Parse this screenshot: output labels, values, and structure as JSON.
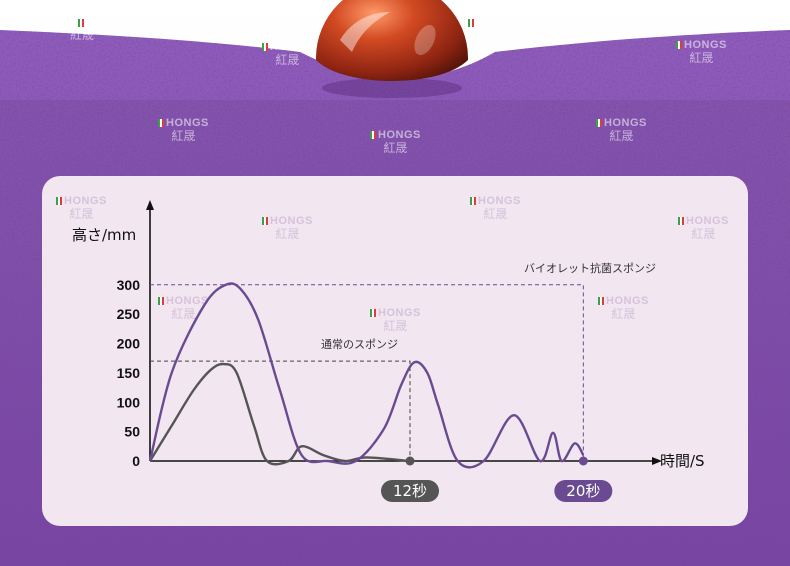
{
  "watermark": {
    "brand_en": "HONGS",
    "brand_cn": "紅晟"
  },
  "colors": {
    "purple_line": "#6a4b92",
    "gray_line": "#555555",
    "panel": "#f2e6f0",
    "sponge": "#8b56b7",
    "pill_gray": "#555555",
    "pill_purple": "#6a4b92"
  },
  "chart_data": {
    "type": "line",
    "title": "",
    "ylabel": "高さ/mm",
    "xlabel": "時間/S",
    "y_ticks": [
      "0",
      "50",
      "100",
      "150",
      "200",
      "250",
      "300"
    ],
    "ylim": [
      0,
      320
    ],
    "xlim": [
      0,
      21
    ],
    "grid": false,
    "series": [
      {
        "name": "バイオレット抗菌スポンジ",
        "color": "#6a4b92",
        "x": [
          0,
          1.0,
          2.5,
          3.5,
          4.2,
          5.0,
          6.0,
          7.0,
          8.2,
          9.5,
          10.8,
          11.6,
          12.2,
          12.8,
          13.3,
          14.2,
          15.4,
          16.8,
          18.0,
          18.6,
          19.0,
          19.6,
          20.0
        ],
        "y": [
          0,
          150,
          265,
          300,
          292,
          240,
          120,
          10,
          0,
          0,
          55,
          130,
          168,
          150,
          95,
          0,
          0,
          78,
          0,
          48,
          0,
          30,
          10
        ]
      },
      {
        "name": "通常のスポンジ",
        "color": "#555555",
        "x": [
          0,
          1.0,
          2.0,
          2.8,
          3.4,
          4.0,
          4.8,
          5.4,
          6.4,
          7.0,
          8.0,
          9.0,
          10.0,
          12.0
        ],
        "y": [
          0,
          60,
          120,
          155,
          165,
          150,
          60,
          0,
          0,
          25,
          10,
          0,
          6,
          0
        ]
      }
    ],
    "annotations": [
      {
        "text": "バイオレット抗菌スポンジ",
        "y_ref": 300,
        "x_ref": 20
      },
      {
        "text": "通常のスポンジ",
        "y_ref": 170,
        "x_ref": 12
      }
    ],
    "markers": [
      {
        "label": "12秒",
        "x": 12,
        "color": "#555555"
      },
      {
        "label": "20秒",
        "x": 20,
        "color": "#6a4b92"
      }
    ]
  }
}
